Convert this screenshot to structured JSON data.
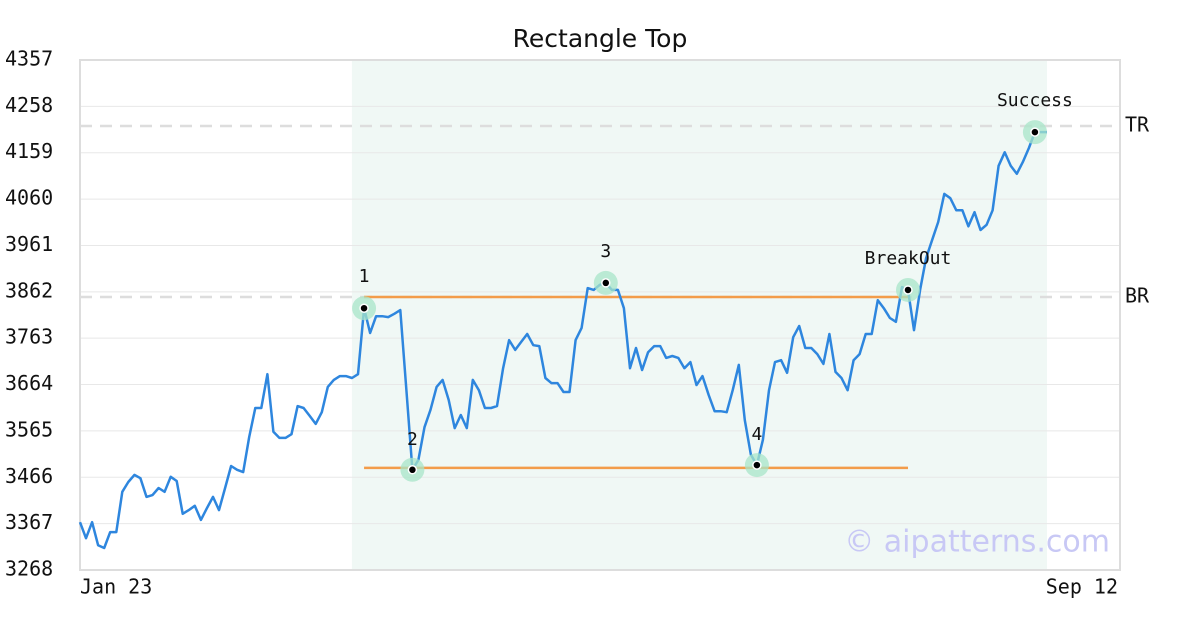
{
  "chart_data": {
    "type": "line",
    "title": "Rectangle Top",
    "categories": [
      "Jan 23",
      null,
      null,
      null,
      null,
      null,
      null,
      null,
      null,
      null,
      null,
      null,
      null,
      null,
      null,
      null,
      null,
      null,
      null,
      null,
      null,
      null,
      null,
      null,
      null,
      null,
      null,
      null,
      null,
      null,
      null,
      null,
      null,
      null,
      null,
      null,
      null,
      null,
      null,
      null,
      null,
      null,
      null,
      null,
      null,
      null,
      null,
      null,
      null,
      null,
      null,
      null,
      null,
      null,
      null,
      null,
      null,
      null,
      null,
      null,
      null,
      null,
      null,
      null,
      null,
      null,
      null,
      null,
      null,
      null,
      null,
      null,
      null,
      null,
      null,
      null,
      null,
      null,
      null,
      null,
      null,
      null,
      null,
      null,
      null,
      null,
      null,
      null,
      null,
      null,
      null,
      null,
      null,
      null,
      null,
      null,
      null,
      null,
      null,
      null,
      null,
      null,
      null,
      null,
      null,
      null,
      null,
      null,
      null,
      null,
      null,
      null,
      null,
      null,
      null,
      null,
      null,
      null,
      null,
      null,
      null,
      null,
      null,
      null,
      null,
      null,
      null,
      null,
      null,
      null,
      null,
      null,
      null,
      null,
      null,
      null,
      null,
      null,
      null,
      null,
      null,
      null,
      null,
      null,
      null,
      null,
      null,
      null,
      null,
      null,
      null,
      null,
      null,
      null,
      null,
      null,
      null,
      null,
      null,
      null,
      "Sep 12"
    ],
    "series": [
      {
        "color": "#2e86de",
        "values": [
          3370,
          3336,
          3370,
          3321,
          3315,
          3349,
          3349,
          3435,
          3456,
          3471,
          3464,
          3424,
          3428,
          3443,
          3435,
          3467,
          3458,
          3388,
          3396,
          3405,
          3375,
          3400,
          3424,
          3396,
          3443,
          3490,
          3482,
          3477,
          3552,
          3614,
          3614,
          3686,
          3563,
          3550,
          3550,
          3558,
          3618,
          3614,
          3597,
          3580,
          3605,
          3659,
          3674,
          3682,
          3682,
          3678,
          3686,
          3827,
          3774,
          3810,
          3810,
          3808,
          3815,
          3823,
          3652,
          3482,
          3503,
          3573,
          3610,
          3659,
          3674,
          3631,
          3571,
          3599,
          3571,
          3674,
          3652,
          3614,
          3614,
          3618,
          3699,
          3759,
          3738,
          3755,
          3772,
          3748,
          3746,
          3678,
          3667,
          3667,
          3648,
          3648,
          3759,
          3785,
          3870,
          3866,
          3877,
          3881,
          3866,
          3866,
          3827,
          3699,
          3742,
          3695,
          3733,
          3746,
          3746,
          3721,
          3725,
          3721,
          3699,
          3712,
          3663,
          3682,
          3642,
          3607,
          3607,
          3605,
          3652,
          3706,
          3588,
          3514,
          3492,
          3546,
          3652,
          3712,
          3716,
          3689,
          3765,
          3789,
          3742,
          3742,
          3729,
          3708,
          3772,
          3691,
          3678,
          3652,
          3716,
          3729,
          3772,
          3772,
          3844,
          3827,
          3806,
          3798,
          3872,
          3866,
          3780,
          3866,
          3934,
          3973,
          4011,
          4071,
          4062,
          4036,
          4036,
          4002,
          4032,
          3994,
          4005,
          4036,
          4131,
          4160,
          4131,
          4114,
          4139,
          4169,
          4203,
          4203,
          4203
        ]
      }
    ],
    "ylim": [
      3268,
      4357
    ],
    "yticks": [
      3268,
      3367,
      3466,
      3565,
      3664,
      3763,
      3862,
      3961,
      4060,
      4159,
      4258,
      4357
    ],
    "grid": true,
    "points": [
      {
        "label": "1",
        "index": 47
      },
      {
        "label": "2",
        "index": 55
      },
      {
        "label": "3",
        "index": 87
      },
      {
        "label": "4",
        "index": 112
      },
      {
        "label": "BreakOut",
        "index": 137
      },
      {
        "label": "Success",
        "index": 158
      }
    ],
    "levels": [
      {
        "label": "TR",
        "value": 4216
      },
      {
        "label": "BR",
        "value": 3851
      }
    ],
    "support": 3486,
    "watermark": "© aipatterns.com"
  }
}
